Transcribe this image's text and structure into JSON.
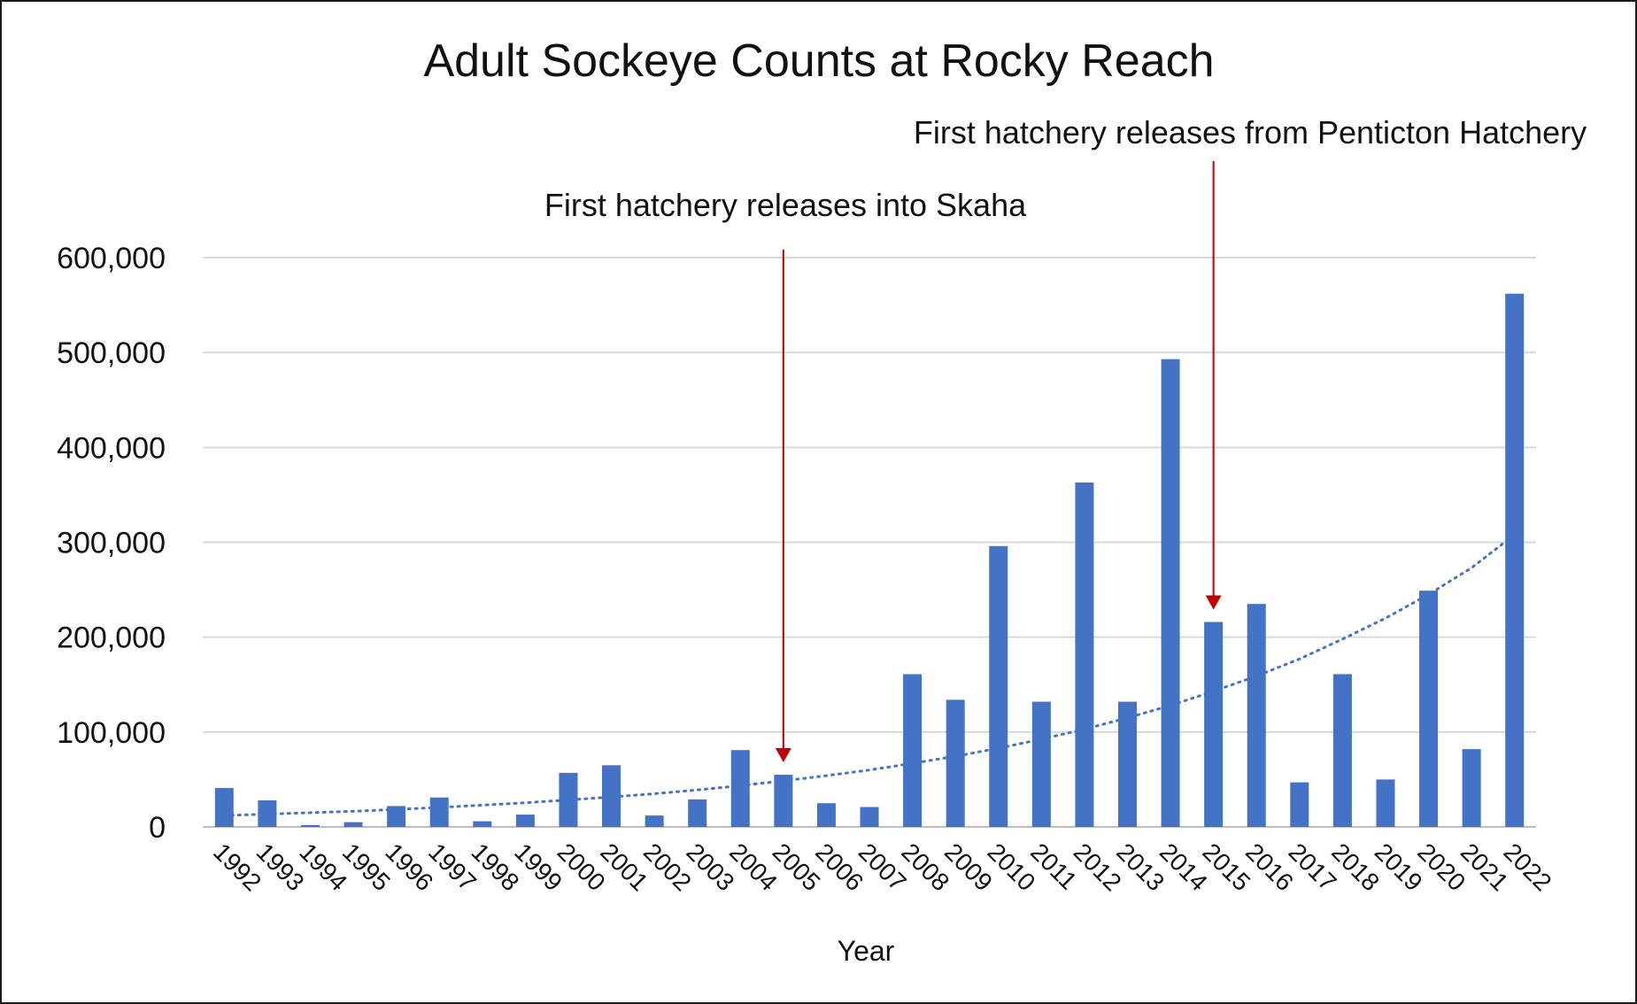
{
  "chart_data": {
    "type": "bar",
    "title": "Adult Sockeye Counts at Rocky Reach",
    "xlabel": "Year",
    "ylabel": "",
    "ylim": [
      0,
      600000
    ],
    "yticks": [
      "0",
      "100,000",
      "200,000",
      "300,000",
      "400,000",
      "500,000",
      "600,000"
    ],
    "grid": true,
    "legend": "none",
    "categories": [
      "1992",
      "1993",
      "1994",
      "1995",
      "1996",
      "1997",
      "1998",
      "1999",
      "2000",
      "2001",
      "2002",
      "2003",
      "2004",
      "2005",
      "2006",
      "2007",
      "2008",
      "2009",
      "2010",
      "2011",
      "2012",
      "2013",
      "2014",
      "2015",
      "2016",
      "2017",
      "2018",
      "2019",
      "2020",
      "2021",
      "2022"
    ],
    "series": [
      {
        "values": [
          41000,
          28000,
          2000,
          5000,
          22000,
          31000,
          6000,
          13000,
          57000,
          65000,
          12000,
          29000,
          81000,
          55000,
          25000,
          21000,
          161000,
          134000,
          296000,
          132000,
          363000,
          132000,
          493000,
          216000,
          235000,
          47000,
          161000,
          50000,
          249000,
          82000,
          562000
        ],
        "color": "#4472c4"
      }
    ],
    "trendline": {
      "type": "exponential",
      "style": "dotted",
      "color": "#4472c4",
      "values": [
        12000,
        13500,
        15000,
        16500,
        18500,
        20500,
        23000,
        25500,
        28500,
        31500,
        35000,
        39000,
        43500,
        48500,
        54000,
        60000,
        67000,
        74500,
        83000,
        92500,
        103000,
        115000,
        128000,
        143000,
        159000,
        177000,
        198000,
        220000,
        245000,
        273000,
        308000
      ]
    },
    "annotations": [
      {
        "text": "First hatchery releases into Skaha",
        "year": "2005",
        "color": "#c00000"
      },
      {
        "text": "First hatchery releases from Penticton Hatchery",
        "year": "2015",
        "color": "#c00000"
      }
    ]
  }
}
